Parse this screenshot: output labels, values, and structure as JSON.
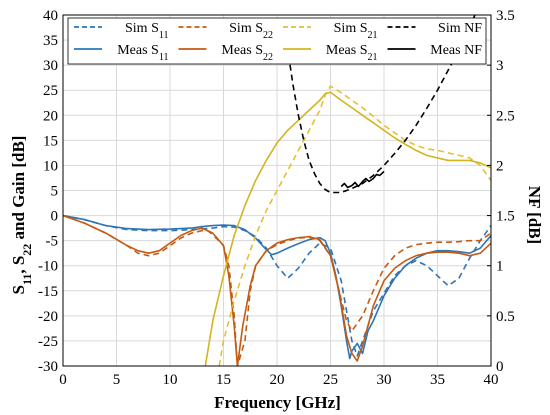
{
  "chart_data": {
    "type": "line",
    "xlabel": "Frequency [GHz]",
    "ylabel_left": {
      "main": "S",
      "sub1": "11",
      "mid": ", S",
      "sub2": "22",
      "tail": " and Gain [dB]"
    },
    "ylabel_right": "NF [dB]",
    "xlim": [
      0,
      40
    ],
    "ylim_left": [
      -30,
      40
    ],
    "ylim_right": [
      0,
      3.5
    ],
    "grid": true,
    "legend_position": "top",
    "x_ticks": [
      "0",
      "5",
      "10",
      "15",
      "20",
      "25",
      "30",
      "35",
      "40"
    ],
    "y_left_ticks": [
      "-30",
      "-25",
      "-20",
      "-15",
      "-10",
      "-5",
      "0",
      "5",
      "10",
      "15",
      "20",
      "25",
      "30",
      "35",
      "40"
    ],
    "y_right_ticks": [
      "0",
      "0.5",
      "1",
      "1.5",
      "2",
      "2.5",
      "3",
      "3.5"
    ],
    "legend": [
      {
        "main": "Sim S",
        "sub": "11",
        "color": "#2e75b6",
        "dash": true
      },
      {
        "main": "Sim S",
        "sub": "22",
        "color": "#c55a11",
        "dash": true
      },
      {
        "main": "Sim S",
        "sub": "21",
        "color": "#e4c030",
        "dash": true
      },
      {
        "main": "Sim NF",
        "sub": "",
        "color": "#000000",
        "dash": true
      },
      {
        "main": "Meas S",
        "sub": "11",
        "color": "#2e75b6",
        "dash": false
      },
      {
        "main": "Meas S",
        "sub": "22",
        "color": "#c55a11",
        "dash": false
      },
      {
        "main": "Meas S",
        "sub": "21",
        "color": "#d4b420",
        "dash": false
      },
      {
        "main": "Meas NF",
        "sub": "",
        "color": "#000000",
        "dash": false
      }
    ],
    "series": [
      {
        "axis": "left",
        "color": "#2e75b6",
        "dash": true,
        "points": [
          [
            0,
            0
          ],
          [
            2,
            -0.8
          ],
          [
            4,
            -2
          ],
          [
            6,
            -2.8
          ],
          [
            8,
            -3
          ],
          [
            10,
            -3
          ],
          [
            12,
            -2.8
          ],
          [
            14,
            -2.5
          ],
          [
            15,
            -2.2
          ],
          [
            16,
            -2.3
          ],
          [
            17,
            -3
          ],
          [
            18,
            -4.2
          ],
          [
            19,
            -6.5
          ],
          [
            20,
            -10
          ],
          [
            21,
            -12.5
          ],
          [
            22,
            -10.5
          ],
          [
            23,
            -7.5
          ],
          [
            24,
            -5.5
          ],
          [
            25,
            -6.5
          ],
          [
            26,
            -13
          ],
          [
            27,
            -25
          ],
          [
            27.5,
            -28
          ],
          [
            28,
            -25
          ],
          [
            29,
            -19
          ],
          [
            30,
            -15.5
          ],
          [
            31,
            -12
          ],
          [
            32,
            -10
          ],
          [
            33,
            -9
          ],
          [
            34,
            -10
          ],
          [
            35,
            -12
          ],
          [
            36,
            -14
          ],
          [
            37,
            -12.5
          ],
          [
            38,
            -8.5
          ],
          [
            39,
            -5
          ],
          [
            40,
            -2
          ]
        ]
      },
      {
        "axis": "left",
        "color": "#2e75b6",
        "dash": false,
        "points": [
          [
            0,
            0
          ],
          [
            2,
            -0.8
          ],
          [
            4,
            -2
          ],
          [
            6,
            -2.6
          ],
          [
            8,
            -2.8
          ],
          [
            10,
            -2.7
          ],
          [
            12,
            -2.5
          ],
          [
            13,
            -2.2
          ],
          [
            14,
            -2
          ],
          [
            15,
            -1.9
          ],
          [
            16,
            -2
          ],
          [
            17,
            -2.8
          ],
          [
            18,
            -4.5
          ],
          [
            19,
            -6.8
          ],
          [
            19.5,
            -7.8
          ],
          [
            20,
            -7.5
          ],
          [
            21,
            -6.5
          ],
          [
            22,
            -5.6
          ],
          [
            23,
            -4.8
          ],
          [
            24,
            -4.4
          ],
          [
            24.5,
            -5
          ],
          [
            25,
            -7.5
          ],
          [
            25.5,
            -12
          ],
          [
            26,
            -18
          ],
          [
            26.5,
            -25
          ],
          [
            26.8,
            -28.5
          ],
          [
            27,
            -27
          ],
          [
            27.5,
            -25.5
          ],
          [
            28,
            -27.5
          ],
          [
            28.5,
            -23
          ],
          [
            29,
            -21
          ],
          [
            30,
            -16
          ],
          [
            31,
            -12.5
          ],
          [
            32,
            -10
          ],
          [
            33,
            -8.5
          ],
          [
            34,
            -7.5
          ],
          [
            35,
            -7
          ],
          [
            36,
            -7
          ],
          [
            37,
            -7.2
          ],
          [
            38,
            -7.5
          ],
          [
            39,
            -6.5
          ],
          [
            40,
            -4
          ]
        ]
      },
      {
        "axis": "left",
        "color": "#c55a11",
        "dash": true,
        "points": [
          [
            0,
            0
          ],
          [
            2,
            -1.5
          ],
          [
            4,
            -3.5
          ],
          [
            6,
            -6
          ],
          [
            7,
            -7.5
          ],
          [
            8,
            -8
          ],
          [
            9,
            -7.5
          ],
          [
            10,
            -6
          ],
          [
            11,
            -4.5
          ],
          [
            12,
            -3.5
          ],
          [
            13,
            -3
          ],
          [
            13.5,
            -3
          ],
          [
            14,
            -3.8
          ],
          [
            15,
            -6
          ],
          [
            15.5,
            -10
          ],
          [
            16,
            -20
          ],
          [
            16.3,
            -30
          ],
          [
            17,
            -25
          ],
          [
            17.5,
            -15
          ],
          [
            18,
            -10
          ],
          [
            19,
            -7
          ],
          [
            20,
            -5.8
          ],
          [
            21,
            -5
          ],
          [
            22,
            -4.5
          ],
          [
            23,
            -4.3
          ],
          [
            24,
            -5
          ],
          [
            25,
            -8
          ],
          [
            25.8,
            -15
          ],
          [
            26.5,
            -21
          ],
          [
            27,
            -23
          ],
          [
            28,
            -20
          ],
          [
            29,
            -15
          ],
          [
            30,
            -10.5
          ],
          [
            31,
            -8
          ],
          [
            32,
            -6.5
          ],
          [
            33,
            -5.8
          ],
          [
            34,
            -5.5
          ],
          [
            35,
            -5.3
          ],
          [
            36,
            -5.3
          ],
          [
            37,
            -5.2
          ],
          [
            38,
            -5
          ],
          [
            39,
            -5
          ],
          [
            40,
            -3.5
          ]
        ]
      },
      {
        "axis": "left",
        "color": "#c55a11",
        "dash": false,
        "points": [
          [
            0,
            0
          ],
          [
            2,
            -1.5
          ],
          [
            4,
            -3.5
          ],
          [
            6,
            -6
          ],
          [
            7,
            -7
          ],
          [
            8,
            -7.5
          ],
          [
            9,
            -7
          ],
          [
            10,
            -5.5
          ],
          [
            11,
            -4
          ],
          [
            12,
            -3
          ],
          [
            13,
            -2.5
          ],
          [
            14,
            -3.5
          ],
          [
            15,
            -6
          ],
          [
            15.5,
            -12
          ],
          [
            16,
            -22
          ],
          [
            16.3,
            -30
          ],
          [
            16.8,
            -22
          ],
          [
            17.5,
            -14
          ],
          [
            18,
            -10
          ],
          [
            19,
            -7
          ],
          [
            20,
            -5.5
          ],
          [
            21,
            -4.8
          ],
          [
            22,
            -4.4
          ],
          [
            23,
            -4.2
          ],
          [
            24,
            -4.8
          ],
          [
            25,
            -8
          ],
          [
            25.8,
            -15
          ],
          [
            26.5,
            -24
          ],
          [
            27,
            -27.5
          ],
          [
            27.5,
            -29
          ],
          [
            28,
            -26
          ],
          [
            29,
            -18
          ],
          [
            30,
            -13
          ],
          [
            31,
            -10.5
          ],
          [
            32,
            -9
          ],
          [
            33,
            -8
          ],
          [
            34,
            -7.5
          ],
          [
            35,
            -7.3
          ],
          [
            36,
            -7.3
          ],
          [
            37,
            -7.5
          ],
          [
            38,
            -8
          ],
          [
            39,
            -7.5
          ],
          [
            40,
            -5.5
          ]
        ]
      },
      {
        "axis": "left",
        "color": "#e4c030",
        "dash": true,
        "points": [
          [
            14.6,
            -30
          ],
          [
            15,
            -25
          ],
          [
            16,
            -17
          ],
          [
            17,
            -10
          ],
          [
            18,
            -4
          ],
          [
            19,
            1
          ],
          [
            20,
            5
          ],
          [
            21,
            9
          ],
          [
            22,
            13
          ],
          [
            23,
            17
          ],
          [
            24,
            21
          ],
          [
            24.5,
            24
          ],
          [
            25,
            25.8
          ],
          [
            26,
            24.5
          ],
          [
            27,
            23
          ],
          [
            28,
            21.5
          ],
          [
            29,
            19.8
          ],
          [
            30,
            18
          ],
          [
            31,
            16.5
          ],
          [
            32,
            15
          ],
          [
            33,
            14
          ],
          [
            34,
            13.3
          ],
          [
            35,
            13
          ],
          [
            36,
            12.5
          ],
          [
            37,
            12
          ],
          [
            38,
            11.5
          ],
          [
            39,
            10
          ],
          [
            40,
            7
          ]
        ]
      },
      {
        "axis": "left",
        "color": "#d4b420",
        "dash": false,
        "points": [
          [
            13.3,
            -30
          ],
          [
            14,
            -21
          ],
          [
            15,
            -12
          ],
          [
            16,
            -4
          ],
          [
            17,
            2
          ],
          [
            18,
            7
          ],
          [
            19,
            11
          ],
          [
            20,
            14.5
          ],
          [
            21,
            17
          ],
          [
            22,
            19
          ],
          [
            23,
            21
          ],
          [
            24,
            23
          ],
          [
            24.5,
            24.3
          ],
          [
            25,
            24.6
          ],
          [
            26,
            23
          ],
          [
            27,
            21.5
          ],
          [
            28,
            20
          ],
          [
            29,
            18.5
          ],
          [
            30,
            17
          ],
          [
            31,
            15.5
          ],
          [
            32,
            14.2
          ],
          [
            33,
            13
          ],
          [
            34,
            12
          ],
          [
            35,
            11.5
          ],
          [
            36,
            11
          ],
          [
            37,
            11
          ],
          [
            38,
            11
          ],
          [
            39,
            10.5
          ],
          [
            40,
            9.5
          ]
        ]
      },
      {
        "axis": "right",
        "color": "#000000",
        "dash": true,
        "points": [
          [
            20.8,
            3.3
          ],
          [
            21.5,
            2.8
          ],
          [
            22,
            2.5
          ],
          [
            22.5,
            2.25
          ],
          [
            23,
            2.05
          ],
          [
            23.5,
            1.92
          ],
          [
            24,
            1.82
          ],
          [
            24.5,
            1.76
          ],
          [
            25,
            1.73
          ],
          [
            26,
            1.73
          ],
          [
            27,
            1.77
          ],
          [
            28,
            1.82
          ],
          [
            29,
            1.9
          ],
          [
            30,
            2
          ],
          [
            31,
            2.12
          ],
          [
            32,
            2.25
          ],
          [
            33,
            2.4
          ],
          [
            34,
            2.57
          ],
          [
            35,
            2.75
          ],
          [
            36,
            2.95
          ],
          [
            37,
            3.15
          ],
          [
            38,
            3.38
          ],
          [
            38.5,
            3.5
          ]
        ]
      },
      {
        "axis": "right",
        "color": "#000000",
        "dash": false,
        "points": [
          [
            26,
            1.79
          ],
          [
            26.3,
            1.82
          ],
          [
            26.6,
            1.78
          ],
          [
            27,
            1.8
          ],
          [
            27.3,
            1.83
          ],
          [
            27.6,
            1.79
          ],
          [
            28,
            1.84
          ],
          [
            28.3,
            1.87
          ],
          [
            28.6,
            1.84
          ],
          [
            29,
            1.87
          ],
          [
            29.3,
            1.91
          ],
          [
            29.6,
            1.9
          ],
          [
            30,
            1.94
          ]
        ]
      }
    ]
  }
}
